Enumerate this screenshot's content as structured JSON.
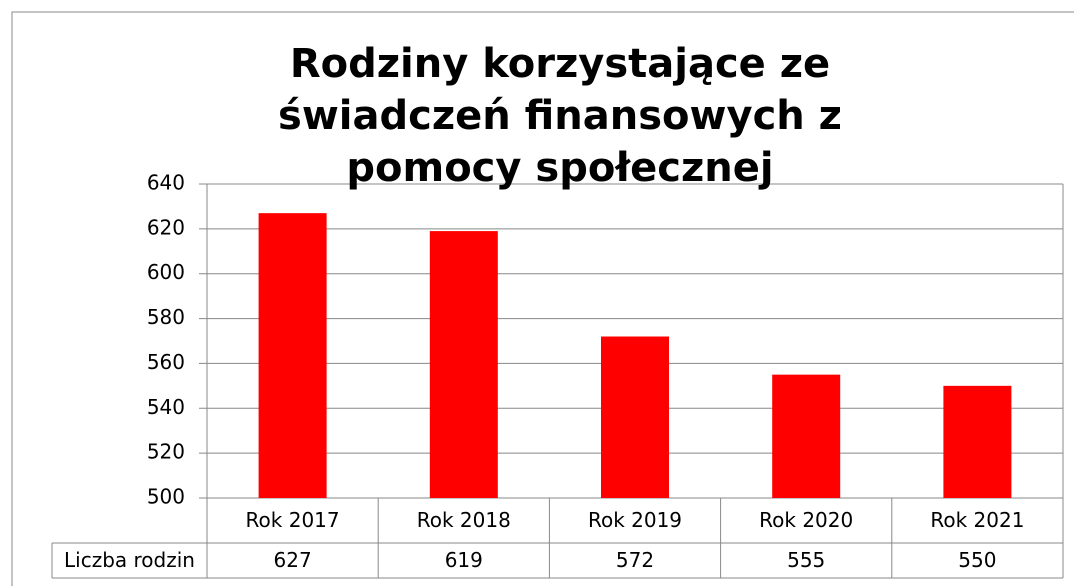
{
  "chart_data": {
    "type": "bar",
    "title": "Rodziny korzystające ze świadczeń finansowych z pomocy społecznej",
    "categories": [
      "Rok 2017",
      "Rok 2018",
      "Rok 2019",
      "Rok 2020",
      "Rok 2021"
    ],
    "series": [
      {
        "name": "Liczba rodzin",
        "color": "#ff0000",
        "values": [
          627,
          619,
          572,
          555,
          550
        ]
      }
    ],
    "ylim": [
      500,
      640
    ],
    "yticks": [
      500,
      520,
      540,
      560,
      580,
      600,
      620,
      640
    ],
    "grid": true
  }
}
